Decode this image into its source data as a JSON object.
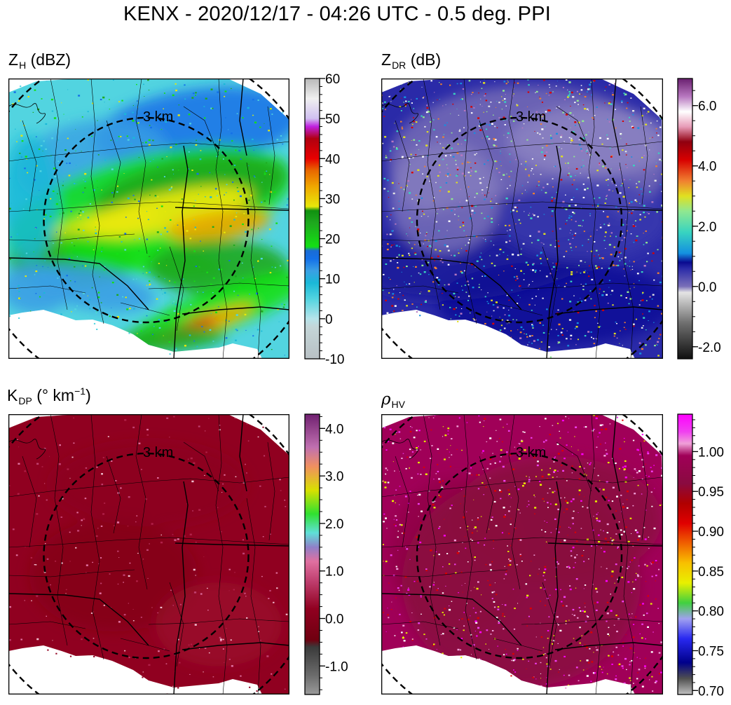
{
  "title": "KENX - 2020/12/17 - 04:26 UTC - 0.5 deg. PPI",
  "chart_data": [
    {
      "type": "heatmap",
      "panel_title": {
        "main": "Z",
        "sub": "H",
        "unit": "(dBZ)"
      },
      "variable": "reflectivity",
      "range_label": "3 km",
      "colorbar": {
        "ticks": [
          "-10",
          "0",
          "10",
          "20",
          "30",
          "40",
          "50",
          "60"
        ],
        "tick_values": [
          -10,
          0,
          10,
          20,
          30,
          40,
          50,
          60
        ],
        "vmin": -10,
        "vmax": 60,
        "minor_step": 2,
        "colors": [
          {
            "v": -10,
            "c": "#b8c0c4"
          },
          {
            "v": -2,
            "c": "#c4d6d8"
          },
          {
            "v": 0,
            "c": "#b6e4ea"
          },
          {
            "v": 5,
            "c": "#52d4e0"
          },
          {
            "v": 9,
            "c": "#1ab8d8"
          },
          {
            "v": 12,
            "c": "#3aa0e4"
          },
          {
            "v": 15,
            "c": "#1470e8"
          },
          {
            "v": 17,
            "c": "#1a6cd4"
          },
          {
            "v": 18,
            "c": "#14e014"
          },
          {
            "v": 24,
            "c": "#1ea81e"
          },
          {
            "v": 27,
            "c": "#109010"
          },
          {
            "v": 28,
            "c": "#e8e80a"
          },
          {
            "v": 33,
            "c": "#f0a800"
          },
          {
            "v": 37,
            "c": "#e86800"
          },
          {
            "v": 40,
            "c": "#e80000"
          },
          {
            "v": 45,
            "c": "#b00010"
          },
          {
            "v": 48,
            "c": "#c020e0"
          },
          {
            "v": 50,
            "c": "#d0c0f0"
          },
          {
            "v": 55,
            "c": "#f0f0f0"
          },
          {
            "v": 60,
            "c": "#b8b8b8"
          }
        ]
      }
    },
    {
      "type": "heatmap",
      "panel_title": {
        "main": "Z",
        "sub": "DR",
        "unit": "(dB)"
      },
      "variable": "differential_reflectivity",
      "range_label": "3 km",
      "colorbar": {
        "ticks": [
          "-2.0",
          "0.0",
          "2.0",
          "4.0",
          "6.0"
        ],
        "tick_values": [
          -2,
          0,
          2,
          4,
          6
        ],
        "vmin": -2.4,
        "vmax": 6.9,
        "minor_step": 0.5,
        "colors": [
          {
            "v": -2.4,
            "c": "#101010"
          },
          {
            "v": -1.2,
            "c": "#707070"
          },
          {
            "v": -0.2,
            "c": "#e4e4e4"
          },
          {
            "v": 0.0,
            "c": "#7a70b8"
          },
          {
            "v": 0.6,
            "c": "#2a2aa8"
          },
          {
            "v": 0.8,
            "c": "#0a0a90"
          },
          {
            "v": 1.1,
            "c": "#1490e0"
          },
          {
            "v": 1.8,
            "c": "#38d4c0"
          },
          {
            "v": 2.5,
            "c": "#90e890"
          },
          {
            "v": 3.0,
            "c": "#e0e020"
          },
          {
            "v": 3.5,
            "c": "#f08030"
          },
          {
            "v": 4.2,
            "c": "#d80000"
          },
          {
            "v": 4.8,
            "c": "#900010"
          },
          {
            "v": 5.3,
            "c": "#e89cb8"
          },
          {
            "v": 5.8,
            "c": "#ffffff"
          },
          {
            "v": 6.3,
            "c": "#b878c0"
          },
          {
            "v": 6.9,
            "c": "#6a2070"
          }
        ]
      }
    },
    {
      "type": "heatmap",
      "panel_title": {
        "main": "K",
        "sub": "DP",
        "unit_prefix": "(° km",
        "unit_sup": "−1",
        "unit_suffix": ")"
      },
      "variable": "specific_differential_phase",
      "range_label": "3 km",
      "colorbar": {
        "ticks": [
          "-1.0",
          "0.0",
          "1.0",
          "2.0",
          "3.0",
          "4.0"
        ],
        "tick_values": [
          -1,
          0,
          1,
          2,
          3,
          4
        ],
        "vmin": -1.6,
        "vmax": 4.3,
        "minor_step": 0.25,
        "colors": [
          {
            "v": -1.6,
            "c": "#9a9a9a"
          },
          {
            "v": -1.2,
            "c": "#6c6c6c"
          },
          {
            "v": -0.6,
            "c": "#3a3a3a"
          },
          {
            "v": -0.45,
            "c": "#700010"
          },
          {
            "v": 0.2,
            "c": "#900020"
          },
          {
            "v": 0.8,
            "c": "#c04070"
          },
          {
            "v": 1.2,
            "c": "#e070a0"
          },
          {
            "v": 1.5,
            "c": "#9080c8"
          },
          {
            "v": 1.8,
            "c": "#60e0d8"
          },
          {
            "v": 2.2,
            "c": "#30e030"
          },
          {
            "v": 2.7,
            "c": "#d8e000"
          },
          {
            "v": 3.2,
            "c": "#f09060"
          },
          {
            "v": 3.6,
            "c": "#c070b0"
          },
          {
            "v": 4.3,
            "c": "#702070"
          }
        ]
      }
    },
    {
      "type": "heatmap",
      "panel_title": {
        "main": "ρ",
        "sub": "HV",
        "unit": ""
      },
      "variable": "correlation_coefficient",
      "range_label": "3 km",
      "colorbar": {
        "ticks": [
          "0.70",
          "0.75",
          "0.80",
          "0.85",
          "0.90",
          "0.95",
          "1.00"
        ],
        "tick_values": [
          0.7,
          0.75,
          0.8,
          0.85,
          0.9,
          0.95,
          1.0
        ],
        "vmin": 0.695,
        "vmax": 1.047,
        "minor_step": 0.01,
        "colors": [
          {
            "v": 0.695,
            "c": "#c0c0c0"
          },
          {
            "v": 0.715,
            "c": "#505050"
          },
          {
            "v": 0.735,
            "c": "#00008a"
          },
          {
            "v": 0.765,
            "c": "#2828f0"
          },
          {
            "v": 0.79,
            "c": "#a0a0f0"
          },
          {
            "v": 0.81,
            "c": "#40d040"
          },
          {
            "v": 0.835,
            "c": "#e8f000"
          },
          {
            "v": 0.86,
            "c": "#f8c000"
          },
          {
            "v": 0.885,
            "c": "#f06000"
          },
          {
            "v": 0.91,
            "c": "#e00000"
          },
          {
            "v": 0.935,
            "c": "#b00000"
          },
          {
            "v": 0.96,
            "c": "#8a0a40"
          },
          {
            "v": 0.995,
            "c": "#a00058"
          },
          {
            "v": 1.01,
            "c": "#f0a0d8"
          },
          {
            "v": 1.025,
            "c": "#f040f0"
          },
          {
            "v": 1.047,
            "c": "#ff00ff"
          }
        ]
      }
    }
  ]
}
